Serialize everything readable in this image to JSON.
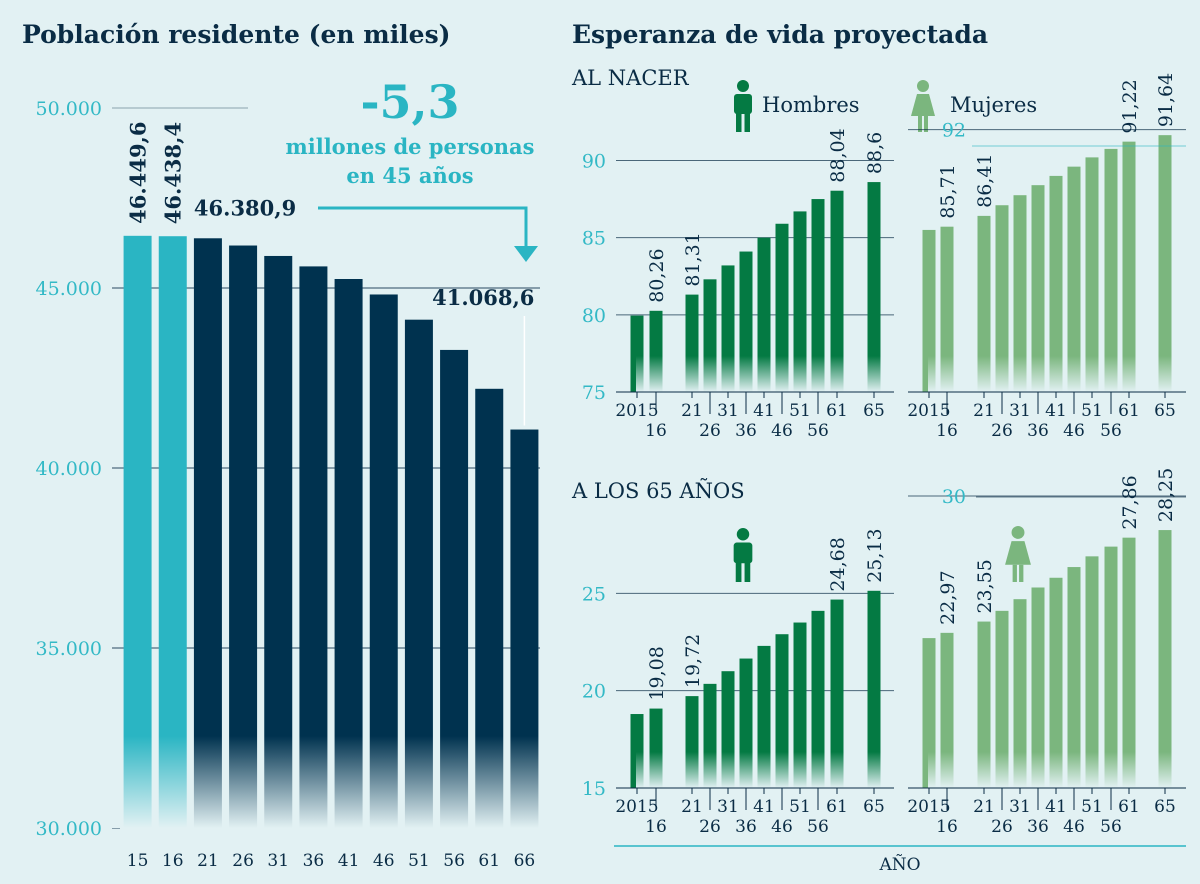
{
  "left_title": "Población residente (en miles)",
  "right_title": "Esperanza de vida proyectada",
  "annotation": {
    "big": "-5,3",
    "line1": "millones de personas",
    "line2": "en 45 años"
  },
  "sections": {
    "birth": "AL NACER",
    "age65": "A LOS 65 AÑOS"
  },
  "legend": {
    "men": "Hombres",
    "women": "Mujeres"
  },
  "x_axis_label": "AÑO",
  "colors": {
    "background": "#e2f1f3",
    "teal": "#2ab5c3",
    "navy": "#00324f",
    "men": "#047a43",
    "women": "#7bb67e",
    "text": "#0a2c45"
  },
  "chart_data": [
    {
      "id": "population",
      "type": "bar",
      "title": "Población residente (en miles)",
      "categories": [
        "15",
        "16",
        "21",
        "26",
        "31",
        "36",
        "41",
        "46",
        "51",
        "56",
        "61",
        "66"
      ],
      "values": [
        46449.6,
        46438.4,
        46380.9,
        46180,
        45890,
        45600,
        45250,
        44820,
        44120,
        43280,
        42200,
        41068.6
      ],
      "highlight": [
        "teal",
        "teal",
        "navy",
        "navy",
        "navy",
        "navy",
        "navy",
        "navy",
        "navy",
        "navy",
        "navy",
        "navy"
      ],
      "ylim": [
        30000,
        50000
      ],
      "yticks": [
        30000,
        35000,
        40000,
        45000,
        50000
      ],
      "ytick_labels": [
        "30.000",
        "35.000",
        "40.000",
        "45.000",
        "50.000"
      ],
      "data_labels": [
        {
          "index": 0,
          "text": "46.449,6"
        },
        {
          "index": 1,
          "text": "46.438,4"
        },
        {
          "index": 2,
          "text": "46.380,9"
        },
        {
          "index": 11,
          "text": "41.068,6"
        }
      ]
    },
    {
      "id": "men-birth",
      "type": "bar",
      "title": "AL NACER",
      "series": "Hombres",
      "years": [
        "2015",
        "16",
        "21",
        "26",
        "31",
        "36",
        "41",
        "46",
        "51",
        "56",
        "61",
        "65"
      ],
      "values": [
        79.95,
        80.26,
        81.31,
        82.3,
        83.2,
        84.1,
        85.0,
        85.9,
        86.7,
        87.5,
        88.04,
        88.6
      ],
      "ylim": [
        75,
        92
      ],
      "yticks": [
        75,
        80,
        85,
        90
      ],
      "ytick_labels": [
        "75",
        "80",
        "85",
        "90"
      ],
      "data_labels": [
        {
          "index": 1,
          "text": "80,26"
        },
        {
          "index": 2,
          "text": "81,31"
        },
        {
          "index": 10,
          "text": "88,04"
        },
        {
          "index": 11,
          "text": "88,6"
        }
      ]
    },
    {
      "id": "women-birth",
      "type": "bar",
      "title": "AL NACER",
      "series": "Mujeres",
      "years": [
        "2015",
        "16",
        "21",
        "26",
        "31",
        "36",
        "41",
        "46",
        "51",
        "56",
        "61",
        "65"
      ],
      "values": [
        85.5,
        85.71,
        86.41,
        87.1,
        87.75,
        88.4,
        89.0,
        89.6,
        90.2,
        90.75,
        91.22,
        91.64
      ],
      "ylim": [
        75,
        92
      ],
      "yticks": [
        92
      ],
      "ytick_labels": [
        "92"
      ],
      "data_labels": [
        {
          "index": 1,
          "text": "85,71"
        },
        {
          "index": 2,
          "text": "86,41"
        },
        {
          "index": 10,
          "text": "91,22"
        },
        {
          "index": 11,
          "text": "91,64"
        }
      ]
    },
    {
      "id": "men-65",
      "type": "bar",
      "title": "A LOS 65 AÑOS",
      "series": "Hombres",
      "years": [
        "2015",
        "16",
        "21",
        "26",
        "31",
        "36",
        "41",
        "46",
        "51",
        "56",
        "61",
        "65"
      ],
      "values": [
        18.8,
        19.08,
        19.72,
        20.35,
        21.0,
        21.65,
        22.3,
        22.9,
        23.5,
        24.1,
        24.68,
        25.13
      ],
      "ylim": [
        15,
        30
      ],
      "yticks": [
        15,
        20,
        25
      ],
      "ytick_labels": [
        "15",
        "20",
        "25"
      ],
      "data_labels": [
        {
          "index": 1,
          "text": "19,08"
        },
        {
          "index": 2,
          "text": "19,72"
        },
        {
          "index": 10,
          "text": "24,68"
        },
        {
          "index": 11,
          "text": "25,13"
        }
      ]
    },
    {
      "id": "women-65",
      "type": "bar",
      "title": "A LOS 65 AÑOS",
      "series": "Mujeres",
      "years": [
        "2015",
        "16",
        "21",
        "26",
        "31",
        "36",
        "41",
        "46",
        "51",
        "56",
        "61",
        "65"
      ],
      "values": [
        22.7,
        22.97,
        23.55,
        24.1,
        24.7,
        25.3,
        25.8,
        26.35,
        26.9,
        27.4,
        27.86,
        28.25
      ],
      "ylim": [
        15,
        30
      ],
      "yticks": [
        30
      ],
      "ytick_labels": [
        "30"
      ],
      "data_labels": [
        {
          "index": 1,
          "text": "22,97"
        },
        {
          "index": 2,
          "text": "23,55"
        },
        {
          "index": 10,
          "text": "27,86"
        },
        {
          "index": 11,
          "text": "28,25"
        }
      ]
    }
  ]
}
